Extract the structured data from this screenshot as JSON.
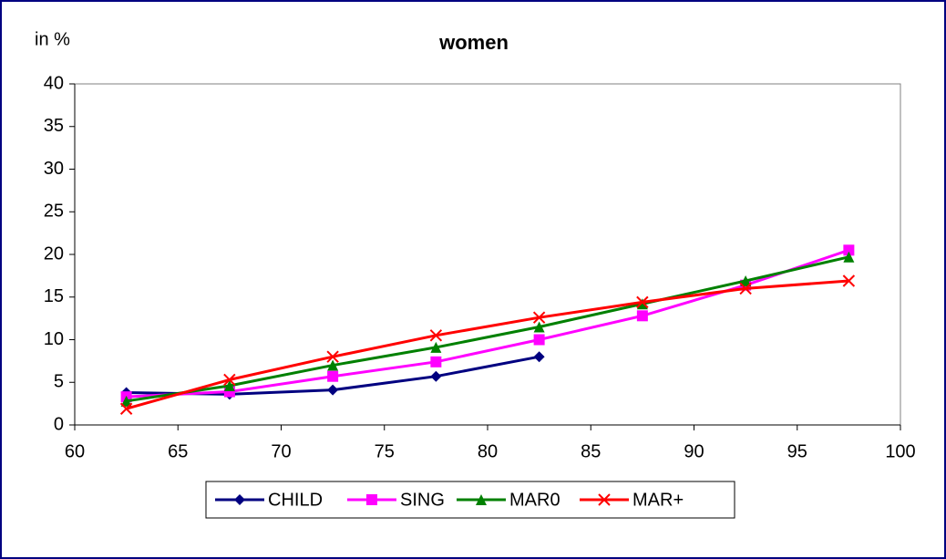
{
  "chart_data": {
    "type": "line",
    "title": "women",
    "y_label": "in %",
    "x": [
      62.5,
      67.5,
      72.5,
      77.5,
      82.5,
      87.5,
      92.5,
      97.5
    ],
    "series": [
      {
        "name": "CHILD",
        "color": "#000080",
        "marker": "diamond",
        "values": [
          3.8,
          3.6,
          4.1,
          5.7,
          8.0,
          null,
          null,
          null
        ]
      },
      {
        "name": "SING",
        "color": "#ff00ff",
        "marker": "square",
        "values": [
          3.3,
          3.9,
          5.7,
          7.4,
          10.0,
          12.8,
          16.4,
          20.5
        ]
      },
      {
        "name": "MAR0",
        "color": "#008000",
        "marker": "triangle",
        "values": [
          2.8,
          4.6,
          7.0,
          9.1,
          11.5,
          14.2,
          16.9,
          19.7
        ]
      },
      {
        "name": "MAR+",
        "color": "#ff0000",
        "marker": "x",
        "values": [
          1.9,
          5.3,
          8.0,
          10.5,
          12.6,
          14.4,
          16.0,
          16.9
        ]
      }
    ],
    "xlim": [
      60,
      100
    ],
    "xticks": [
      60,
      65,
      70,
      75,
      80,
      85,
      90,
      95,
      100
    ],
    "ylim": [
      0,
      40
    ],
    "yticks": [
      0,
      5,
      10,
      15,
      20,
      25,
      30,
      35,
      40
    ],
    "legend": "bottom"
  }
}
